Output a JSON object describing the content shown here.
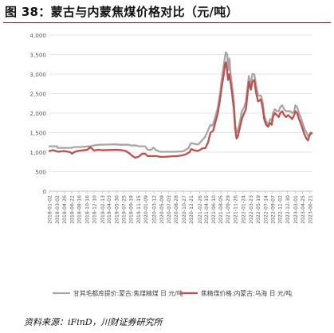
{
  "title": "图 38：蒙古与内蒙焦煤价格对比（元/吨）",
  "source": "资料来源：iFinD，川财证券研究所",
  "chart_data": {
    "type": "line",
    "title": "图 38：蒙古与内蒙焦煤价格对比（元/吨）",
    "xlabel": "",
    "ylabel": "",
    "ylim": [
      0,
      4000
    ],
    "yticks": [
      0,
      500,
      1000,
      1500,
      2000,
      2500,
      3000,
      3500,
      4000
    ],
    "ytick_labels": [
      "0",
      "500",
      "1,000",
      "1,500",
      "2,000",
      "2,500",
      "3,000",
      "3,500",
      "4,000"
    ],
    "xlim": [
      "2018-01-02",
      "2023-07-10"
    ],
    "xtick_labels": [
      "2018-01-02",
      "2018-03-02",
      "2018-04-26",
      "2018-06-22",
      "2018-08-16",
      "2018-10-16",
      "2018-12-10",
      "2019-02-13",
      "2019-04-03",
      "2019-05-30",
      "2019-07-25",
      "2019-09-18",
      "2019-11-15",
      "2020-01-09",
      "2020-03-12",
      "2020-05-09",
      "2020-07-03",
      "2020-08-28",
      "2020-10-27",
      "2020-12-21",
      "2021-02-26",
      "2021-04-15",
      "2021-06-10",
      "2021-08-05",
      "2021-09-29",
      "2021-11-26",
      "2022-01-24",
      "2022-03-23",
      "2022-05-19",
      "2022-07-14",
      "2022-09-07",
      "2022-11-02",
      "2022-12-30",
      "2023-03-01",
      "2023-04-25",
      "2023-06-21"
    ],
    "grid": {
      "x": false,
      "y": true
    },
    "legend_position": "bottom",
    "series": [
      {
        "name": "甘其毛都库提价:蒙古:焦煤精煤 日 元/吨",
        "color": "#a6a6a6",
        "points": [
          [
            "2018-01-02",
            1150
          ],
          [
            "2018-03-01",
            1150
          ],
          [
            "2018-03-05",
            1110
          ],
          [
            "2018-06-20",
            1110
          ],
          [
            "2018-07-10",
            1130
          ],
          [
            "2018-08-20",
            1130
          ],
          [
            "2018-10-01",
            1140
          ],
          [
            "2018-11-10",
            1150
          ],
          [
            "2018-12-20",
            1180
          ],
          [
            "2019-01-20",
            1190
          ],
          [
            "2019-05-20",
            1200
          ],
          [
            "2019-07-01",
            1190
          ],
          [
            "2019-09-01",
            1190
          ],
          [
            "2019-09-20",
            1170
          ],
          [
            "2019-10-20",
            1175
          ],
          [
            "2019-11-20",
            1150
          ],
          [
            "2020-01-05",
            1150
          ],
          [
            "2020-01-25",
            1060
          ],
          [
            "2020-02-20",
            1060
          ],
          [
            "2020-03-10",
            1120
          ],
          [
            "2020-03-25",
            1060
          ],
          [
            "2020-05-01",
            1010
          ],
          [
            "2020-08-15",
            1010
          ],
          [
            "2020-10-20",
            1020
          ],
          [
            "2020-11-10",
            1060
          ],
          [
            "2020-12-01",
            1100
          ],
          [
            "2020-12-20",
            1230
          ],
          [
            "2021-01-10",
            1220
          ],
          [
            "2021-02-01",
            1200
          ],
          [
            "2021-02-15",
            1200
          ],
          [
            "2021-03-10",
            1280
          ],
          [
            "2021-04-10",
            1400
          ],
          [
            "2021-05-01",
            1560
          ],
          [
            "2021-05-20",
            1700
          ],
          [
            "2021-06-05",
            1680
          ],
          [
            "2021-06-25",
            1900
          ],
          [
            "2021-07-15",
            2150
          ],
          [
            "2021-08-01",
            2500
          ],
          [
            "2021-08-15",
            2900
          ],
          [
            "2021-08-28",
            3200
          ],
          [
            "2021-09-08",
            3450
          ],
          [
            "2021-09-15",
            3560
          ],
          [
            "2021-09-25",
            3500
          ],
          [
            "2021-10-03",
            3100
          ],
          [
            "2021-10-12",
            3400
          ],
          [
            "2021-10-22",
            2950
          ],
          [
            "2021-11-01",
            2700
          ],
          [
            "2021-11-15",
            2300
          ],
          [
            "2021-11-25",
            1700
          ],
          [
            "2021-12-05",
            1500
          ],
          [
            "2021-12-15",
            1550
          ],
          [
            "2022-01-01",
            1800
          ],
          [
            "2022-01-15",
            2050
          ],
          [
            "2022-02-01",
            2150
          ],
          [
            "2022-02-15",
            2300
          ],
          [
            "2022-02-25",
            2600
          ],
          [
            "2022-03-10",
            2950
          ],
          [
            "2022-03-25",
            2700
          ],
          [
            "2022-04-05",
            3000
          ],
          [
            "2022-04-20",
            3000
          ],
          [
            "2022-05-05",
            2700
          ],
          [
            "2022-05-20",
            2450
          ],
          [
            "2022-06-10",
            2450
          ],
          [
            "2022-06-25",
            2250
          ],
          [
            "2022-07-05",
            1950
          ],
          [
            "2022-07-20",
            1800
          ],
          [
            "2022-08-05",
            1700
          ],
          [
            "2022-08-20",
            1850
          ],
          [
            "2022-09-01",
            1800
          ],
          [
            "2022-09-10",
            2000
          ],
          [
            "2022-09-25",
            2100
          ],
          [
            "2022-10-10",
            2050
          ],
          [
            "2022-10-25",
            2050
          ],
          [
            "2022-11-05",
            2150
          ],
          [
            "2022-11-20",
            2200
          ],
          [
            "2022-12-05",
            2100
          ],
          [
            "2022-12-20",
            2050
          ],
          [
            "2023-01-05",
            2050
          ],
          [
            "2023-01-20",
            2050
          ],
          [
            "2023-02-05",
            2000
          ],
          [
            "2023-02-20",
            2050
          ],
          [
            "2023-03-01",
            2200
          ],
          [
            "2023-03-15",
            2150
          ],
          [
            "2023-03-28",
            2000
          ],
          [
            "2023-04-10",
            1900
          ],
          [
            "2023-04-25",
            1750
          ],
          [
            "2023-05-10",
            1600
          ],
          [
            "2023-05-25",
            1500
          ],
          [
            "2023-06-05",
            1420
          ],
          [
            "2023-06-15",
            1450
          ],
          [
            "2023-06-25",
            1500
          ],
          [
            "2023-07-05",
            1500
          ]
        ]
      },
      {
        "name": "焦精煤价格:内蒙古:乌海 日 元/吨",
        "color": "#c0504d",
        "points": [
          [
            "2018-01-02",
            1030
          ],
          [
            "2018-02-01",
            1050
          ],
          [
            "2018-03-10",
            1010
          ],
          [
            "2018-04-26",
            1030
          ],
          [
            "2018-06-10",
            1000
          ],
          [
            "2018-06-25",
            960
          ],
          [
            "2018-07-10",
            1000
          ],
          [
            "2018-08-05",
            1030
          ],
          [
            "2018-10-20",
            1060
          ],
          [
            "2018-11-10",
            1130
          ],
          [
            "2018-12-10",
            1040
          ],
          [
            "2019-01-10",
            1060
          ],
          [
            "2019-02-15",
            1050
          ],
          [
            "2019-06-01",
            1060
          ],
          [
            "2019-07-10",
            1050
          ],
          [
            "2019-08-10",
            1030
          ],
          [
            "2019-09-10",
            960
          ],
          [
            "2019-10-01",
            900
          ],
          [
            "2019-10-20",
            860
          ],
          [
            "2019-11-15",
            880
          ],
          [
            "2019-12-15",
            960
          ],
          [
            "2020-01-05",
            960
          ],
          [
            "2020-01-25",
            900
          ],
          [
            "2020-03-01",
            900
          ],
          [
            "2020-04-01",
            900
          ],
          [
            "2020-05-01",
            880
          ],
          [
            "2020-06-01",
            880
          ],
          [
            "2020-07-15",
            890
          ],
          [
            "2020-09-10",
            900
          ],
          [
            "2020-10-20",
            920
          ],
          [
            "2020-11-15",
            950
          ],
          [
            "2020-12-10",
            1000
          ],
          [
            "2020-12-25",
            1080
          ],
          [
            "2021-01-10",
            1050
          ],
          [
            "2021-02-10",
            1030
          ],
          [
            "2021-03-01",
            1060
          ],
          [
            "2021-03-20",
            1100
          ],
          [
            "2021-04-10",
            1100
          ],
          [
            "2021-05-01",
            1250
          ],
          [
            "2021-05-20",
            1500
          ],
          [
            "2021-06-10",
            1550
          ],
          [
            "2021-06-25",
            1750
          ],
          [
            "2021-07-15",
            2000
          ],
          [
            "2021-08-01",
            2350
          ],
          [
            "2021-08-15",
            2700
          ],
          [
            "2021-08-28",
            2950
          ],
          [
            "2021-09-08",
            3250
          ],
          [
            "2021-09-15",
            3300
          ],
          [
            "2021-09-22",
            3150
          ],
          [
            "2021-10-01",
            2850
          ],
          [
            "2021-10-10",
            3000
          ],
          [
            "2021-10-20",
            2800
          ],
          [
            "2021-11-01",
            2500
          ],
          [
            "2021-11-15",
            2100
          ],
          [
            "2021-11-25",
            1600
          ],
          [
            "2021-12-05",
            1350
          ],
          [
            "2021-12-15",
            1400
          ],
          [
            "2022-01-01",
            1650
          ],
          [
            "2022-01-15",
            1850
          ],
          [
            "2022-02-01",
            2000
          ],
          [
            "2022-02-15",
            2100
          ],
          [
            "2022-02-25",
            2400
          ],
          [
            "2022-03-10",
            2800
          ],
          [
            "2022-03-25",
            2600
          ],
          [
            "2022-04-05",
            2800
          ],
          [
            "2022-04-20",
            2850
          ],
          [
            "2022-05-05",
            2500
          ],
          [
            "2022-05-20",
            2300
          ],
          [
            "2022-06-10",
            2350
          ],
          [
            "2022-06-25",
            2100
          ],
          [
            "2022-07-05",
            1850
          ],
          [
            "2022-07-20",
            1700
          ],
          [
            "2022-08-05",
            1650
          ],
          [
            "2022-08-20",
            1750
          ],
          [
            "2022-09-01",
            1700
          ],
          [
            "2022-09-10",
            1900
          ],
          [
            "2022-09-25",
            2000
          ],
          [
            "2022-10-10",
            1950
          ],
          [
            "2022-10-25",
            1900
          ],
          [
            "2022-11-05",
            2000
          ],
          [
            "2022-11-20",
            2050
          ],
          [
            "2022-12-05",
            1950
          ],
          [
            "2022-12-20",
            1900
          ],
          [
            "2023-01-05",
            1950
          ],
          [
            "2023-01-20",
            1900
          ],
          [
            "2023-02-05",
            1850
          ],
          [
            "2023-02-20",
            1950
          ],
          [
            "2023-03-01",
            2050
          ],
          [
            "2023-03-15",
            2000
          ],
          [
            "2023-03-28",
            1850
          ],
          [
            "2023-04-10",
            1750
          ],
          [
            "2023-04-25",
            1600
          ],
          [
            "2023-05-10",
            1450
          ],
          [
            "2023-05-25",
            1350
          ],
          [
            "2023-06-05",
            1300
          ],
          [
            "2023-06-15",
            1400
          ],
          [
            "2023-06-25",
            1480
          ],
          [
            "2023-07-05",
            1480
          ]
        ]
      }
    ]
  }
}
